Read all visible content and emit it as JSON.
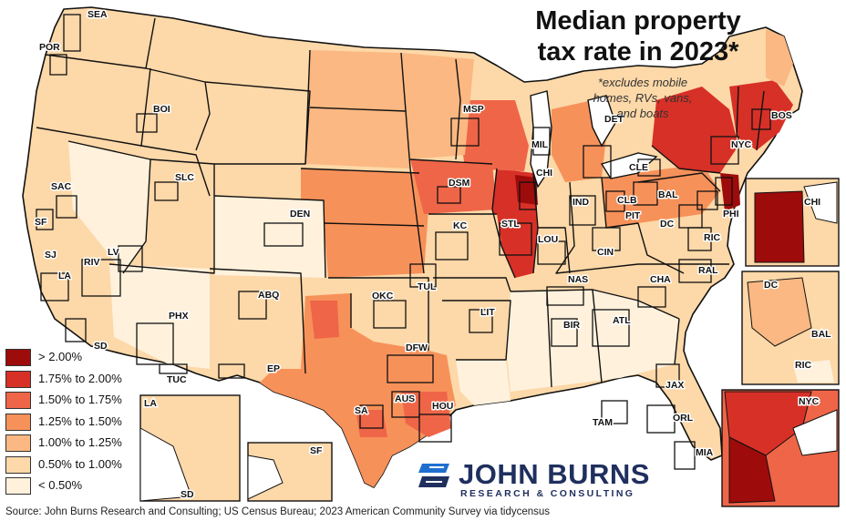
{
  "title_line1": "Median property",
  "title_line2": "tax rate in 2023*",
  "footnote_line1": "*excludes mobile",
  "footnote_line2": "homes, RVs, vans,",
  "footnote_line3": "and boats",
  "legend": [
    {
      "label": "> 2.00%",
      "color": "#9e0b0b"
    },
    {
      "label": "1.75% to 2.00%",
      "color": "#d73027"
    },
    {
      "label": "1.50% to 1.75%",
      "color": "#ef6548"
    },
    {
      "label": "1.25% to 1.50%",
      "color": "#f7915a"
    },
    {
      "label": "1.00% to 1.25%",
      "color": "#fbb882"
    },
    {
      "label": "0.50% to 1.00%",
      "color": "#fdd8a8"
    },
    {
      "label": "< 0.50%",
      "color": "#fff1dc"
    }
  ],
  "source": "Source: John Burns Research and Consulting; US Census Bureau; 2023 American Community Survey via tidycensus",
  "logo": {
    "name": "JOHN BURNS",
    "tagline": "RESEARCH & CONSULTING",
    "color": "#1f2f5e"
  },
  "cities": [
    "SEA",
    "POR",
    "BOI",
    "SAC",
    "SF",
    "SJ",
    "LA",
    "RIV",
    "SD",
    "LV",
    "PHX",
    "TUC",
    "SLC",
    "DEN",
    "ABQ",
    "EP",
    "MSP",
    "DSM",
    "KC",
    "OKC",
    "TUL",
    "DFW",
    "AUS",
    "SA",
    "HOU",
    "LIT",
    "STL",
    "MIL",
    "CHI",
    "DET",
    "IND",
    "LOU",
    "CIN",
    "CLB",
    "PIT",
    "CLE",
    "NAS",
    "CHA",
    "BIR",
    "ATL",
    "TAM",
    "ORL",
    "JAX",
    "MIA",
    "DC",
    "BAL",
    "PHI",
    "NYC",
    "BOS",
    "RIC",
    "RAL"
  ],
  "insets": {
    "la_sd": [
      "LA",
      "SD"
    ],
    "sf": [
      "SF"
    ],
    "chi": [
      "CHI"
    ],
    "dc": [
      "DC",
      "BAL",
      "RIC"
    ],
    "nyc": [
      "NYC"
    ]
  }
}
